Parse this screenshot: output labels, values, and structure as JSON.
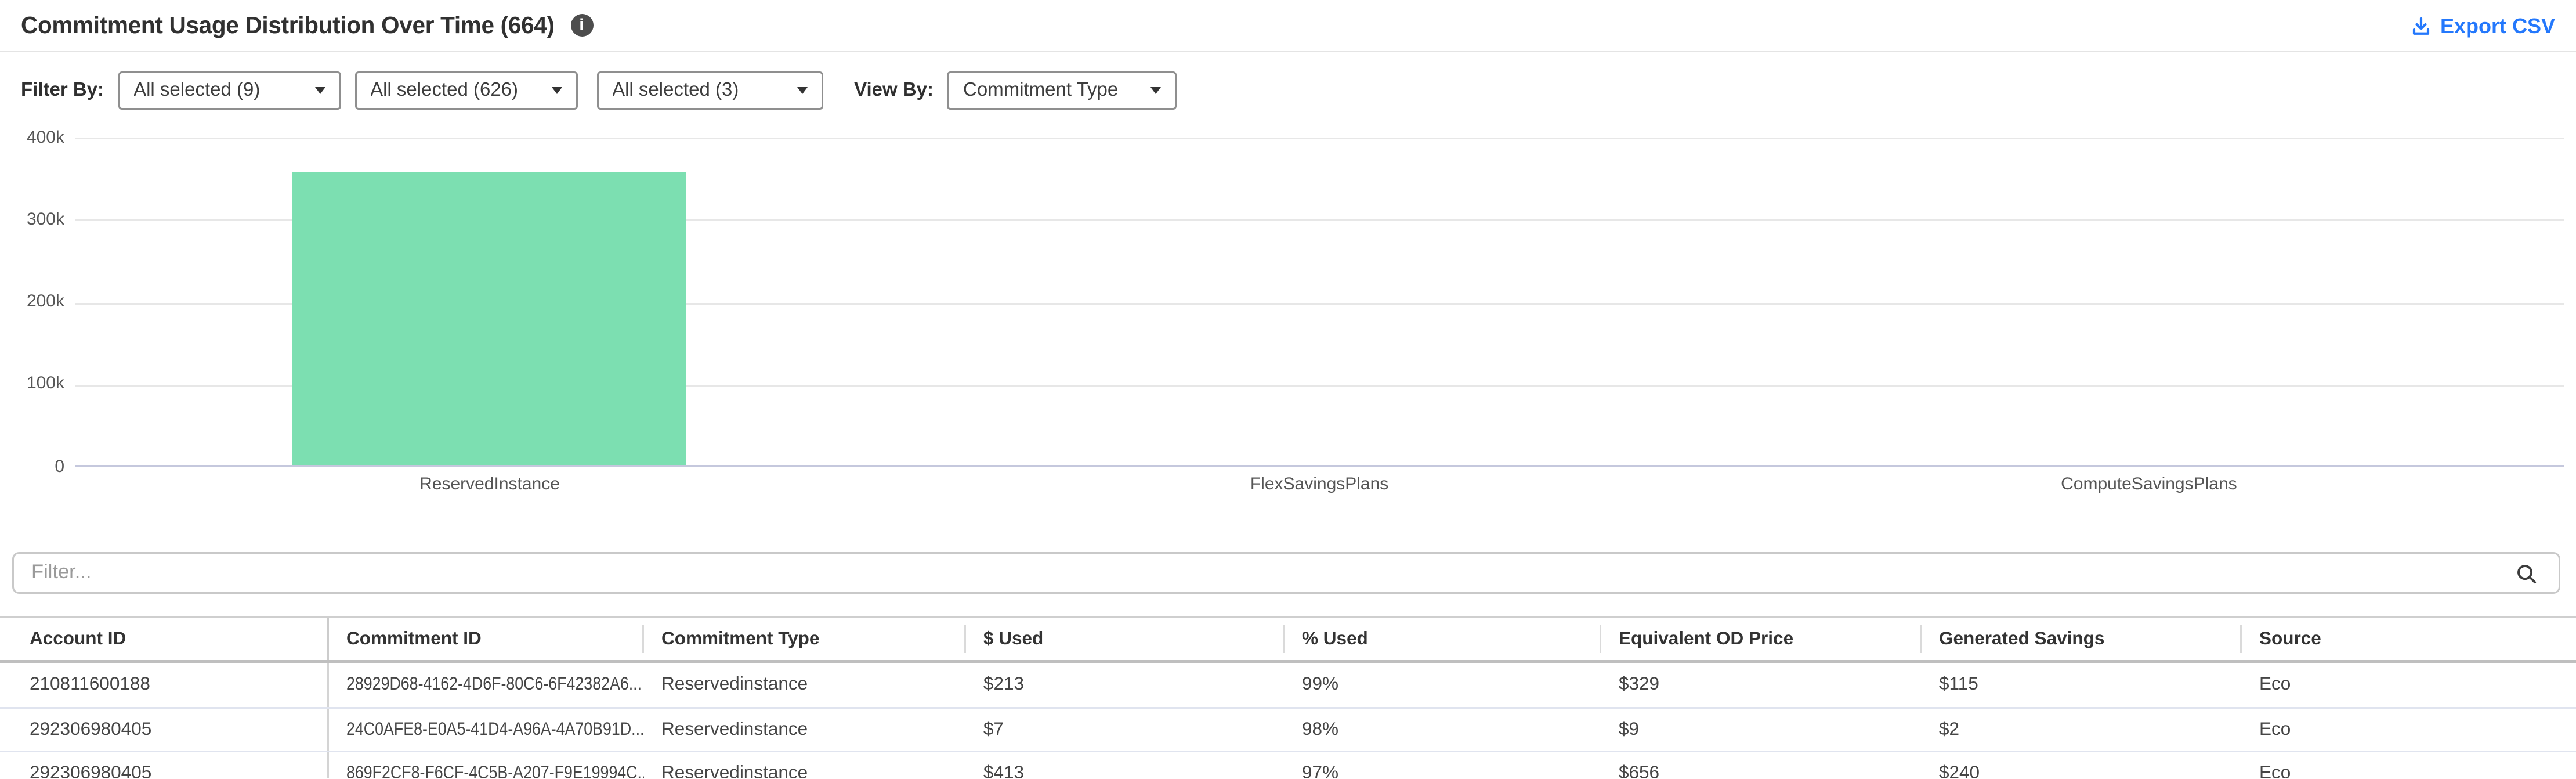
{
  "header": {
    "title": "Commitment Usage Distribution Over Time (664)",
    "info_icon": "i",
    "export_label": "Export CSV"
  },
  "filters": {
    "filter_by_label": "Filter By:",
    "view_by_label": "View By:",
    "dropdowns": [
      {
        "value": "All selected (9)"
      },
      {
        "value": "All selected (626)"
      },
      {
        "value": "All selected (3)"
      }
    ],
    "view_by_dropdown": {
      "value": "Commitment Type"
    }
  },
  "chart_data": {
    "type": "bar",
    "categories": [
      "ReservedInstance",
      "FlexSavingsPlans",
      "ComputeSavingsPlans"
    ],
    "values": [
      358000,
      0,
      0
    ],
    "yticks": [
      "400k",
      "300k",
      "200k",
      "100k",
      "0"
    ],
    "ylim": [
      0,
      400000
    ],
    "title": "",
    "xlabel": "",
    "ylabel": "",
    "grid": true,
    "bar_color": "#7cdfb1"
  },
  "table_filter": {
    "placeholder": "Filter..."
  },
  "table": {
    "columns": [
      "Account ID",
      "Commitment ID",
      "Commitment Type",
      "$ Used",
      "% Used",
      "Equivalent OD Price",
      "Generated Savings",
      "Source"
    ],
    "rows": [
      [
        "210811600188",
        "28929D68-4162-4D6F-80C6-6F42382A6...",
        "Reservedinstance",
        "$213",
        "99%",
        "$329",
        "$115",
        "Eco"
      ],
      [
        "292306980405",
        "24C0AFE8-E0A5-41D4-A96A-4A70B91D...",
        "Reservedinstance",
        "$7",
        "98%",
        "$9",
        "$2",
        "Eco"
      ],
      [
        "292306980405",
        "869F2CF8-F6CF-4C5B-A207-F9E19994C...",
        "Reservedinstance",
        "$413",
        "97%",
        "$656",
        "$240",
        "Eco"
      ]
    ]
  },
  "colors": {
    "accent_blue": "#2478fc",
    "bar_green": "#7cdfb1",
    "zero_axis": "#c5c8dd"
  }
}
